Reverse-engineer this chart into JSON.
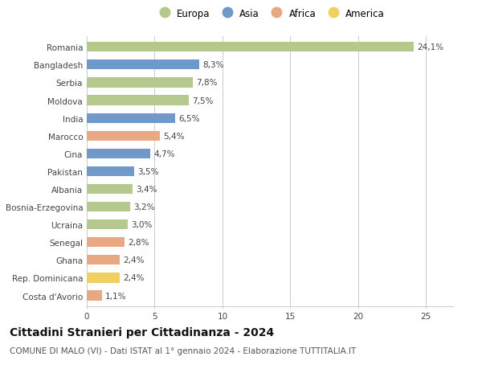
{
  "countries": [
    "Costa d'Avorio",
    "Rep. Dominicana",
    "Ghana",
    "Senegal",
    "Ucraina",
    "Bosnia-Erzegovina",
    "Albania",
    "Pakistan",
    "Cina",
    "Marocco",
    "India",
    "Moldova",
    "Serbia",
    "Bangladesh",
    "Romania"
  ],
  "values": [
    1.1,
    2.4,
    2.4,
    2.8,
    3.0,
    3.2,
    3.4,
    3.5,
    4.7,
    5.4,
    6.5,
    7.5,
    7.8,
    8.3,
    24.1
  ],
  "labels": [
    "1,1%",
    "2,4%",
    "2,4%",
    "2,8%",
    "3,0%",
    "3,2%",
    "3,4%",
    "3,5%",
    "4,7%",
    "5,4%",
    "6,5%",
    "7,5%",
    "7,8%",
    "8,3%",
    "24,1%"
  ],
  "continents": [
    "Africa",
    "America",
    "Africa",
    "Africa",
    "Europa",
    "Europa",
    "Europa",
    "Asia",
    "Asia",
    "Africa",
    "Asia",
    "Europa",
    "Europa",
    "Asia",
    "Europa"
  ],
  "continent_colors": {
    "Europa": "#b5c98e",
    "Asia": "#7098c8",
    "Africa": "#e8a882",
    "America": "#f0d060"
  },
  "legend_entries": [
    "Europa",
    "Asia",
    "Africa",
    "America"
  ],
  "legend_colors": [
    "#b5c98e",
    "#7098c8",
    "#e8a882",
    "#f0d060"
  ],
  "title": "Cittadini Stranieri per Cittadinanza - 2024",
  "subtitle": "COMUNE DI MALO (VI) - Dati ISTAT al 1° gennaio 2024 - Elaborazione TUTTITALIA.IT",
  "xlim": [
    0,
    27
  ],
  "xticks": [
    0,
    5,
    10,
    15,
    20,
    25
  ],
  "background_color": "#ffffff",
  "bar_height": 0.55,
  "grid_color": "#cccccc",
  "label_fontsize": 7.5,
  "title_fontsize": 10,
  "subtitle_fontsize": 7.5,
  "tick_fontsize": 7.5,
  "legend_fontsize": 8.5
}
